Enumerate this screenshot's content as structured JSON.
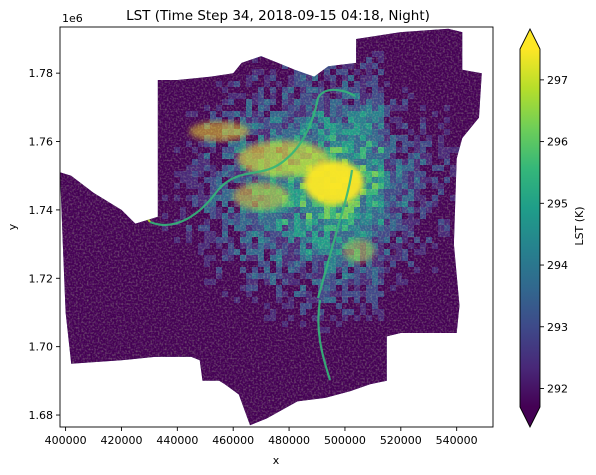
{
  "chart_data": {
    "type": "heatmap",
    "title": "LST (Time Step 34, 2018-09-15 04:18, Night)",
    "xlabel": "x",
    "ylabel": "y",
    "y_offset_label": "1e6",
    "xlim": [
      398000,
      553000
    ],
    "ylim": [
      1.6765,
      1.7935
    ],
    "x_ticks": [
      {
        "value": 400000,
        "label": "400000"
      },
      {
        "value": 420000,
        "label": "420000"
      },
      {
        "value": 440000,
        "label": "440000"
      },
      {
        "value": 460000,
        "label": "460000"
      },
      {
        "value": 480000,
        "label": "480000"
      },
      {
        "value": 500000,
        "label": "500000"
      },
      {
        "value": 520000,
        "label": "520000"
      },
      {
        "value": 540000,
        "label": "540000"
      }
    ],
    "y_ticks": [
      {
        "value": 1.68,
        "label": "1.68"
      },
      {
        "value": 1.7,
        "label": "1.70"
      },
      {
        "value": 1.72,
        "label": "1.72"
      },
      {
        "value": 1.74,
        "label": "1.74"
      },
      {
        "value": 1.76,
        "label": "1.76"
      },
      {
        "value": 1.78,
        "label": "1.78"
      }
    ],
    "colorbar": {
      "label": "LST (K)",
      "colormap": "viridis",
      "extend": "both",
      "vmin": 291.7,
      "vmax": 297.5,
      "ticks": [
        {
          "value": 292,
          "label": "292"
        },
        {
          "value": 293,
          "label": "293"
        },
        {
          "value": 294,
          "label": "294"
        },
        {
          "value": 295,
          "label": "295"
        },
        {
          "value": 296,
          "label": "296"
        },
        {
          "value": 297,
          "label": "297"
        }
      ],
      "colors": [
        "#440154",
        "#482878",
        "#3e4989",
        "#31688e",
        "#26828e",
        "#1f9e89",
        "#35b779",
        "#6ece58",
        "#b5de2b",
        "#fde725"
      ]
    },
    "extent_outline": [
      [
        398000,
        1.751
      ],
      [
        402000,
        1.75
      ],
      [
        410000,
        1.745
      ],
      [
        420000,
        1.74
      ],
      [
        425000,
        1.736
      ],
      [
        433000,
        1.738
      ],
      [
        433000,
        1.778
      ],
      [
        440000,
        1.778
      ],
      [
        452000,
        1.779
      ],
      [
        460000,
        1.78
      ],
      [
        463000,
        1.783
      ],
      [
        470000,
        1.785
      ],
      [
        476000,
        1.783
      ],
      [
        482000,
        1.781
      ],
      [
        489000,
        1.779
      ],
      [
        494000,
        1.782
      ],
      [
        504000,
        1.783
      ],
      [
        504000,
        1.79
      ],
      [
        520000,
        1.792
      ],
      [
        537000,
        1.793
      ],
      [
        542000,
        1.792
      ],
      [
        542000,
        1.781
      ],
      [
        549000,
        1.78
      ],
      [
        548000,
        1.767
      ],
      [
        542000,
        1.761
      ],
      [
        540000,
        1.755
      ],
      [
        539000,
        1.73
      ],
      [
        541000,
        1.712
      ],
      [
        540000,
        1.704
      ],
      [
        520000,
        1.704
      ],
      [
        515000,
        1.703
      ],
      [
        515000,
        1.69
      ],
      [
        509000,
        1.689
      ],
      [
        502000,
        1.687
      ],
      [
        493000,
        1.685
      ],
      [
        483000,
        1.684
      ],
      [
        472000,
        1.679
      ],
      [
        466000,
        1.677
      ],
      [
        462000,
        1.686
      ],
      [
        457000,
        1.689
      ],
      [
        455000,
        1.69
      ],
      [
        449000,
        1.69
      ],
      [
        448000,
        1.696
      ],
      [
        445000,
        1.697
      ],
      [
        432000,
        1.697
      ],
      [
        420000,
        1.696
      ],
      [
        402000,
        1.695
      ],
      [
        400000,
        1.71
      ],
      [
        399000,
        1.73
      ],
      [
        398000,
        1.751
      ]
    ]
  }
}
